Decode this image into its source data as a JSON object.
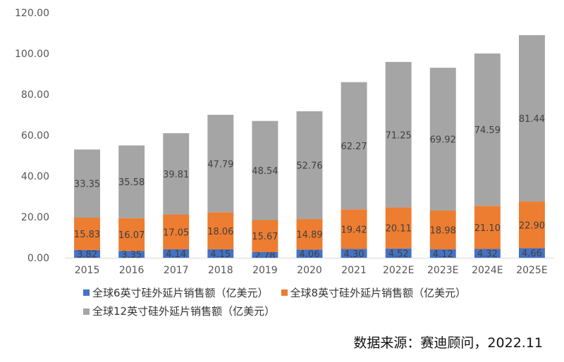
{
  "chart_data": {
    "type": "bar",
    "stacked": true,
    "categories": [
      "2015",
      "2016",
      "2017",
      "2018",
      "2019",
      "2020",
      "2021",
      "2022E",
      "2023E",
      "2024E",
      "2025E"
    ],
    "series": [
      {
        "name": "全球6英寸硅外延片销售额（亿美元）",
        "color": "#4472C4",
        "values": [
          3.82,
          3.35,
          4.14,
          4.15,
          2.78,
          4.06,
          4.3,
          4.52,
          4.12,
          4.32,
          4.66
        ]
      },
      {
        "name": "全球8英寸硅外延片销售额（亿美元）",
        "color": "#ED7D31",
        "values": [
          15.83,
          16.07,
          17.05,
          18.06,
          15.67,
          14.89,
          19.42,
          20.11,
          18.98,
          21.1,
          22.9
        ]
      },
      {
        "name": "全球12英寸硅外延片销售额（亿美元）",
        "color": "#A5A5A5",
        "values": [
          33.35,
          35.58,
          39.81,
          47.79,
          48.54,
          52.76,
          62.27,
          71.25,
          69.92,
          74.59,
          81.44
        ]
      }
    ],
    "ylim": [
      0,
      120
    ],
    "yticks": [
      "0.00",
      "20.00",
      "40.00",
      "60.00",
      "80.00",
      "100.00",
      "120.00"
    ],
    "grid": false,
    "legend_position": "bottom",
    "title": "",
    "xlabel": "",
    "ylabel": ""
  },
  "source_text": "数据来源：赛迪顾问，2022.11"
}
